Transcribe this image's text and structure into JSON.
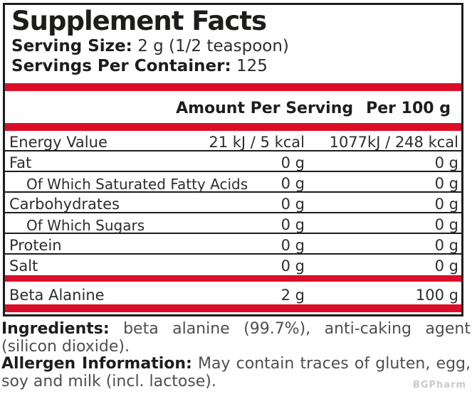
{
  "header": {
    "title": "Supplement Facts",
    "serving_size_label": "Serving Size:",
    "serving_size_value": "2 g (1/2 teaspoon)",
    "servings_label": "Servings Per Container:",
    "servings_value": "125"
  },
  "table": {
    "col_amount_per_serving": "Amount Per Serving",
    "col_per_100g": "Per 100 g",
    "rows": [
      {
        "name": "Energy Value",
        "per_serving": "21 kJ / 5 kcal",
        "per_100g": "1077kJ / 248 kcal",
        "indent": false,
        "underline": true
      },
      {
        "name": "Fat",
        "per_serving": "0 g",
        "per_100g": "0 g",
        "indent": false,
        "underline": true
      },
      {
        "name": "Of Which Saturated Fatty Acids",
        "per_serving": "0 g",
        "per_100g": "0 g",
        "indent": true,
        "underline": true
      },
      {
        "name": "Carbohydrates",
        "per_serving": "0 g",
        "per_100g": "0 g",
        "indent": false,
        "underline": true
      },
      {
        "name": "Of Which Sugars",
        "per_serving": "0 g",
        "per_100g": "0 g",
        "indent": true,
        "underline": true
      },
      {
        "name": "Protein",
        "per_serving": "0 g",
        "per_100g": "0 g",
        "indent": false,
        "underline": true
      },
      {
        "name": "Salt",
        "per_serving": "0 g",
        "per_100g": "0 g",
        "indent": false,
        "underline": false
      }
    ],
    "active_rows": [
      {
        "name": "Beta Alanine",
        "per_serving": "2 g",
        "per_100g": "100 g",
        "indent": false,
        "underline": false
      }
    ]
  },
  "footer": {
    "ingredients_label": "Ingredients:",
    "ingredients_text": " beta alanine (99.7%), anti-caking agent (silicon dioxide).",
    "allergen_label": "Allergen Information:",
    "allergen_text": " May contain traces of gluten, egg, soy and milk (incl. lactose)."
  },
  "watermark_text": "BGPharm",
  "colors": {
    "accent_red": "#dc0d28",
    "border_black": "#1d1d1b",
    "row_text": "#2d2d2d",
    "footer_text": "#4e4e4e",
    "watermark_gray": "#c9c9c9"
  }
}
